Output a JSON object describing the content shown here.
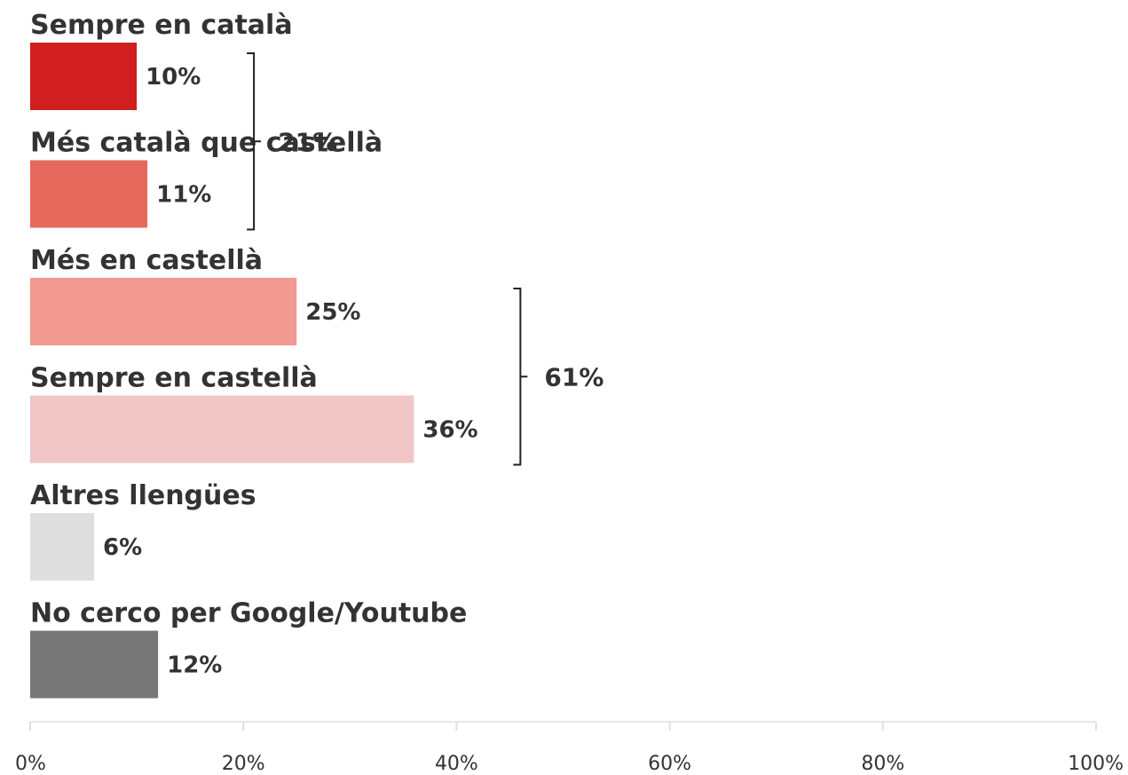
{
  "chart_data": {
    "type": "bar",
    "orientation": "horizontal",
    "categories": [
      "Sempre en català",
      "Més català que castellà",
      "Més en castellà",
      "Sempre en castellà",
      "Altres llengües",
      "No cerco per Google/Youtube"
    ],
    "values": [
      10,
      11,
      25,
      36,
      6,
      12
    ],
    "value_labels": [
      "10%",
      "11%",
      "25%",
      "36%",
      "6%",
      "12%"
    ],
    "bar_colors": [
      "#d11f1f",
      "#e5695c",
      "#f29992",
      "#f0c6c6",
      "#dedede",
      "#777777"
    ],
    "groups": [
      {
        "label": "21%",
        "from": 0,
        "to": 1
      },
      {
        "label": "61%",
        "from": 2,
        "to": 3
      }
    ],
    "xlim": [
      0,
      100
    ],
    "xticks": [
      0,
      20,
      40,
      60,
      80,
      100
    ],
    "xtick_labels": [
      "0%",
      "20%",
      "40%",
      "60%",
      "80%",
      "100%"
    ],
    "title": "",
    "xlabel": "",
    "ylabel": "",
    "grid": false,
    "legend": "none"
  }
}
